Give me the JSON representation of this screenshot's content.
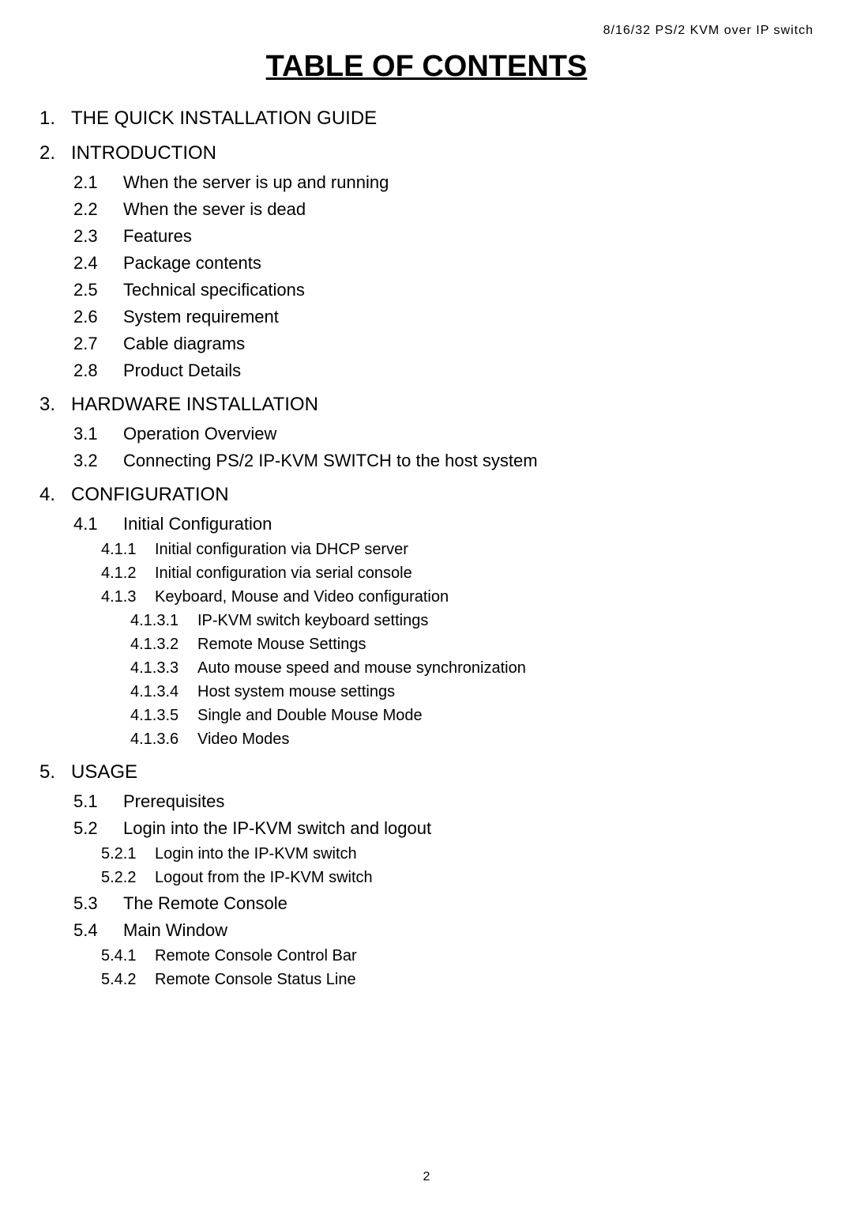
{
  "header": "8/16/32 PS/2 KVM over IP switch",
  "title": "TABLE OF CONTENTS",
  "page_number": "2",
  "entries": [
    {
      "level": 1,
      "num": "1.",
      "text": "THE QUICK INSTALLATION GUIDE"
    },
    {
      "level": 1,
      "num": "2.",
      "text": "INTRODUCTION"
    },
    {
      "level": 2,
      "num": "2.1",
      "text": "When the server is up and running"
    },
    {
      "level": 2,
      "num": "2.2",
      "text": "When the sever is dead"
    },
    {
      "level": 2,
      "num": "2.3",
      "text": "Features"
    },
    {
      "level": 2,
      "num": "2.4",
      "text": "Package contents"
    },
    {
      "level": 2,
      "num": "2.5",
      "text": "Technical specifications"
    },
    {
      "level": 2,
      "num": "2.6",
      "text": "System requirement"
    },
    {
      "level": 2,
      "num": "2.7",
      "text": "Cable diagrams"
    },
    {
      "level": 2,
      "num": "2.8",
      "text": "Product Details"
    },
    {
      "level": 1,
      "num": "3.",
      "text": "HARDWARE INSTALLATION"
    },
    {
      "level": 2,
      "num": "3.1",
      "text": "Operation Overview"
    },
    {
      "level": 2,
      "num": "3.2",
      "text": "Connecting PS/2 IP-KVM SWITCH to the host system"
    },
    {
      "level": 1,
      "num": "4.",
      "text": "CONFIGURATION"
    },
    {
      "level": 2,
      "num": "4.1",
      "text": "Initial Configuration"
    },
    {
      "level": 3,
      "num": "4.1.1",
      "text": "Initial configuration via DHCP server"
    },
    {
      "level": 3,
      "num": "4.1.2",
      "text": "Initial configuration via serial console"
    },
    {
      "level": 3,
      "num": "4.1.3",
      "text": "Keyboard, Mouse and Video configuration"
    },
    {
      "level": 4,
      "num": "4.1.3.1",
      "text": "IP-KVM switch keyboard settings"
    },
    {
      "level": 4,
      "num": "4.1.3.2",
      "text": "Remote Mouse Settings"
    },
    {
      "level": 4,
      "num": "4.1.3.3",
      "text": "Auto mouse speed and mouse synchronization"
    },
    {
      "level": 4,
      "num": "4.1.3.4",
      "text": "Host system mouse settings"
    },
    {
      "level": 4,
      "num": "4.1.3.5",
      "text": "Single and Double Mouse Mode"
    },
    {
      "level": 4,
      "num": "4.1.3.6",
      "text": "Video Modes"
    },
    {
      "level": 1,
      "num": "5.",
      "text": "USAGE"
    },
    {
      "level": 2,
      "num": "5.1",
      "text": "Prerequisites"
    },
    {
      "level": 2,
      "num": "5.2",
      "text": "Login into the IP-KVM switch and logout"
    },
    {
      "level": 3,
      "num": "5.2.1",
      "text": "Login into the IP-KVM switch"
    },
    {
      "level": 3,
      "num": "5.2.2",
      "text": "Logout from the IP-KVM switch"
    },
    {
      "level": 2,
      "num": "5.3",
      "text": "The Remote Console"
    },
    {
      "level": 2,
      "num": "5.4",
      "text": "Main Window"
    },
    {
      "level": 3,
      "num": "5.4.1",
      "text": "Remote Console Control Bar"
    },
    {
      "level": 3,
      "num": "5.4.2",
      "text": "Remote Console Status Line"
    }
  ]
}
